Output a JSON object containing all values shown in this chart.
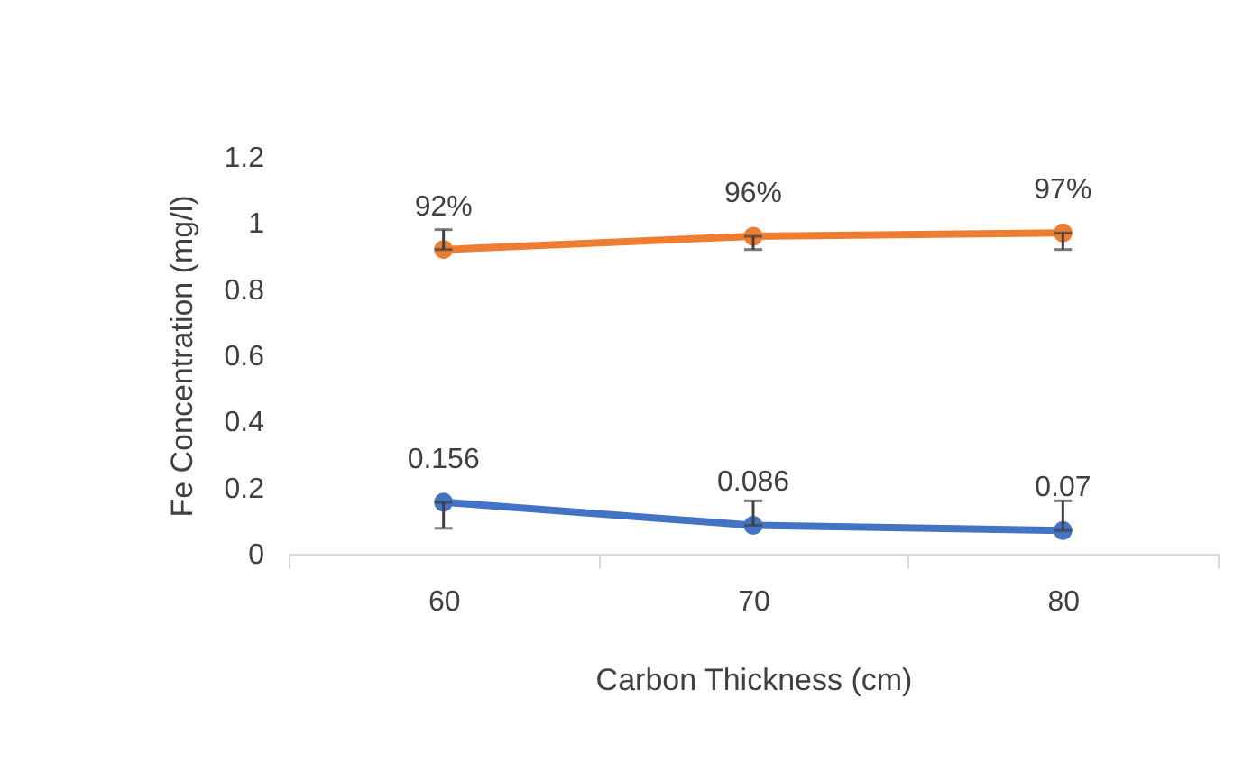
{
  "chart_data": {
    "type": "line",
    "xlabel": "Carbon Thickness (cm)",
    "ylabel": "Fe Concentration (mg/l)",
    "categories": [
      "60",
      "70",
      "80"
    ],
    "series": [
      {
        "color": "#4472c4",
        "values": [
          0.156,
          0.086,
          0.07
        ],
        "errors": [
          [
            0.077,
            0.156
          ],
          [
            0.086,
            0.16
          ],
          [
            0.07,
            0.16
          ]
        ],
        "value_labels": [
          "0.156",
          "0.086",
          "0.07"
        ]
      },
      {
        "color": "#ed7d31",
        "values": [
          0.92,
          0.96,
          0.97
        ],
        "errors": [
          [
            0.92,
            0.98
          ],
          [
            0.92,
            0.96
          ],
          [
            0.92,
            0.97
          ]
        ],
        "value_labels": [
          "92%",
          "96%",
          "97%"
        ]
      }
    ],
    "ylim": [
      0,
      1.2
    ],
    "yticks": [
      0,
      0.2,
      0.4,
      0.6,
      0.8,
      1,
      1.2
    ],
    "grid": false,
    "legend": false,
    "marker": "circle",
    "line_style": "solid"
  }
}
